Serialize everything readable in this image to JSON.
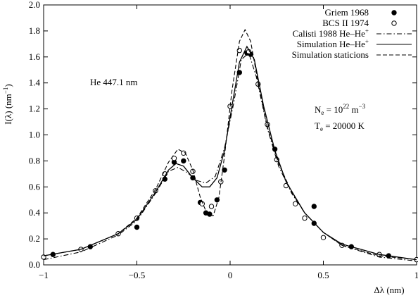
{
  "chart_data": {
    "type": "line",
    "xlabel": "Δλ (nm)",
    "ylabel": "I(λ) (nm−1)",
    "xlim": [
      -1,
      1
    ],
    "ylim": [
      0,
      2.0
    ],
    "xticks": [
      -1,
      -0.5,
      0,
      0.5,
      1
    ],
    "xtick_labels": [
      "−1",
      "−0.5",
      "0",
      "0.5",
      "1"
    ],
    "yticks": [
      0,
      0.2,
      0.4,
      0.6,
      0.8,
      1.0,
      1.2,
      1.4,
      1.6,
      1.8,
      2.0
    ],
    "ytick_labels": [
      "0.0",
      "0.2",
      "0.4",
      "0.6",
      "0.8",
      "1.0",
      "1.2",
      "1.4",
      "1.6",
      "1.8",
      "2.0"
    ],
    "grid": false,
    "legend_position": "top-right",
    "annotations": {
      "line_label": "He 447.1 nm",
      "ne_label": "Ne = 10",
      "ne_sub": "e",
      "ne_exp": "22",
      "ne_unit": "m",
      "ne_unit_exp": "−3",
      "te_label": "T",
      "te_sub": "e",
      "te_value": "= 20000 K"
    },
    "series": [
      {
        "name": "Griem 1968",
        "style": "markers-filled",
        "points": [
          [
            -0.95,
            0.08
          ],
          [
            -0.75,
            0.14
          ],
          [
            -0.5,
            0.29
          ],
          [
            -0.35,
            0.66
          ],
          [
            -0.3,
            0.79
          ],
          [
            -0.25,
            0.8
          ],
          [
            -0.2,
            0.67
          ],
          [
            -0.16,
            0.48
          ],
          [
            -0.13,
            0.4
          ],
          [
            -0.11,
            0.39
          ],
          [
            -0.07,
            0.5
          ],
          [
            -0.03,
            0.73
          ],
          [
            0.05,
            1.48
          ],
          [
            0.09,
            1.63
          ],
          [
            0.11,
            1.62
          ],
          [
            0.24,
            0.89
          ],
          [
            0.45,
            0.45
          ],
          [
            0.45,
            0.32
          ],
          [
            0.65,
            0.14
          ],
          [
            0.85,
            0.07
          ]
        ]
      },
      {
        "name": "BCS II 1974",
        "style": "markers-open",
        "points": [
          [
            -1.0,
            0.06
          ],
          [
            -0.8,
            0.12
          ],
          [
            -0.6,
            0.24
          ],
          [
            -0.5,
            0.36
          ],
          [
            -0.4,
            0.57
          ],
          [
            -0.35,
            0.7
          ],
          [
            -0.3,
            0.82
          ],
          [
            -0.25,
            0.86
          ],
          [
            -0.2,
            0.72
          ],
          [
            -0.15,
            0.47
          ],
          [
            -0.1,
            0.45
          ],
          [
            -0.05,
            0.64
          ],
          [
            0.0,
            1.22
          ],
          [
            0.05,
            1.65
          ],
          [
            0.1,
            1.64
          ],
          [
            0.15,
            1.39
          ],
          [
            0.2,
            1.08
          ],
          [
            0.25,
            0.81
          ],
          [
            0.3,
            0.61
          ],
          [
            0.35,
            0.47
          ],
          [
            0.4,
            0.36
          ],
          [
            0.5,
            0.21
          ],
          [
            0.6,
            0.15
          ],
          [
            0.8,
            0.08
          ],
          [
            1.0,
            0.04
          ]
        ]
      },
      {
        "name": "Calisti 1988  He–He+",
        "style": "dash-dot",
        "points": [
          [
            -1.0,
            0.04
          ],
          [
            -0.8,
            0.1
          ],
          [
            -0.6,
            0.23
          ],
          [
            -0.5,
            0.34
          ],
          [
            -0.4,
            0.55
          ],
          [
            -0.33,
            0.72
          ],
          [
            -0.28,
            0.75
          ],
          [
            -0.23,
            0.71
          ],
          [
            -0.18,
            0.65
          ],
          [
            -0.13,
            0.63
          ],
          [
            -0.08,
            0.68
          ],
          [
            -0.03,
            0.9
          ],
          [
            0.02,
            1.25
          ],
          [
            0.06,
            1.58
          ],
          [
            0.1,
            1.63
          ],
          [
            0.14,
            1.45
          ],
          [
            0.2,
            1.05
          ],
          [
            0.26,
            0.76
          ],
          [
            0.33,
            0.55
          ],
          [
            0.4,
            0.4
          ],
          [
            0.5,
            0.25
          ],
          [
            0.6,
            0.15
          ],
          [
            0.8,
            0.06
          ],
          [
            1.0,
            0.03
          ]
        ]
      },
      {
        "name": "Simulation He–He+",
        "style": "solid",
        "points": [
          [
            -1.0,
            0.07
          ],
          [
            -0.8,
            0.12
          ],
          [
            -0.6,
            0.24
          ],
          [
            -0.5,
            0.35
          ],
          [
            -0.4,
            0.56
          ],
          [
            -0.33,
            0.73
          ],
          [
            -0.29,
            0.78
          ],
          [
            -0.25,
            0.76
          ],
          [
            -0.2,
            0.67
          ],
          [
            -0.15,
            0.6
          ],
          [
            -0.11,
            0.6
          ],
          [
            -0.07,
            0.67
          ],
          [
            -0.03,
            0.88
          ],
          [
            0.01,
            1.22
          ],
          [
            0.05,
            1.56
          ],
          [
            0.09,
            1.68
          ],
          [
            0.13,
            1.58
          ],
          [
            0.18,
            1.22
          ],
          [
            0.24,
            0.88
          ],
          [
            0.3,
            0.64
          ],
          [
            0.4,
            0.4
          ],
          [
            0.5,
            0.25
          ],
          [
            0.6,
            0.16
          ],
          [
            0.8,
            0.08
          ],
          [
            1.0,
            0.04
          ]
        ]
      },
      {
        "name": "Simulation staticions",
        "style": "dashed",
        "points": [
          [
            -1.0,
            0.07
          ],
          [
            -0.8,
            0.12
          ],
          [
            -0.6,
            0.24
          ],
          [
            -0.5,
            0.36
          ],
          [
            -0.4,
            0.58
          ],
          [
            -0.33,
            0.79
          ],
          [
            -0.28,
            0.89
          ],
          [
            -0.24,
            0.86
          ],
          [
            -0.2,
            0.73
          ],
          [
            -0.16,
            0.52
          ],
          [
            -0.12,
            0.38
          ],
          [
            -0.09,
            0.38
          ],
          [
            -0.06,
            0.52
          ],
          [
            -0.03,
            0.84
          ],
          [
            0.01,
            1.34
          ],
          [
            0.05,
            1.72
          ],
          [
            0.08,
            1.81
          ],
          [
            0.11,
            1.72
          ],
          [
            0.15,
            1.4
          ],
          [
            0.2,
            1.06
          ],
          [
            0.26,
            0.78
          ],
          [
            0.33,
            0.56
          ],
          [
            0.4,
            0.4
          ],
          [
            0.5,
            0.25
          ],
          [
            0.6,
            0.15
          ],
          [
            0.8,
            0.07
          ],
          [
            1.0,
            0.04
          ]
        ]
      }
    ]
  }
}
